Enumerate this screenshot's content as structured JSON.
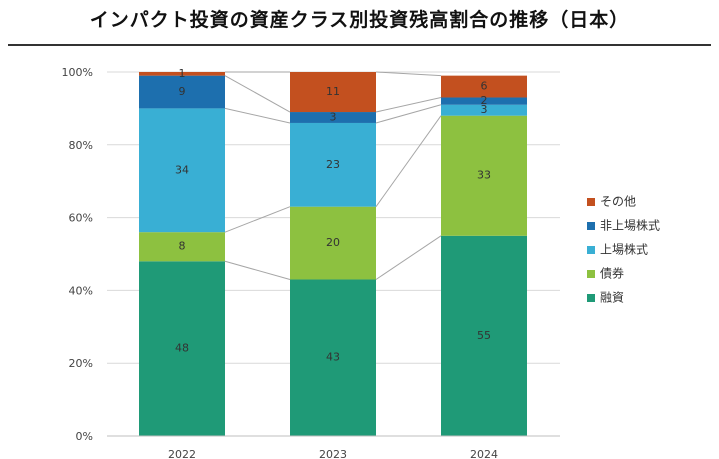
{
  "title": "インパクト投資の資産クラス別投資残高割合の推移（日本）",
  "chart_data": {
    "type": "bar",
    "stacked": true,
    "categories": [
      "2022",
      "2023",
      "2024"
    ],
    "series": [
      {
        "name": "融資",
        "color": "#1f9a77",
        "values": [
          48,
          43,
          55
        ]
      },
      {
        "name": "債券",
        "color": "#8dc140",
        "values": [
          8,
          20,
          33
        ]
      },
      {
        "name": "上場株式",
        "color": "#39afd4",
        "values": [
          34,
          23,
          3
        ]
      },
      {
        "name": "非上場株式",
        "color": "#1d6fae",
        "values": [
          9,
          3,
          2
        ]
      },
      {
        "name": "その他",
        "color": "#c3501f",
        "values": [
          1,
          11,
          6
        ]
      }
    ],
    "ylim": [
      0,
      100
    ],
    "yticks": [
      "0%",
      "20%",
      "40%",
      "60%",
      "80%",
      "100%"
    ],
    "legend_order": [
      "その他",
      "非上場株式",
      "上場株式",
      "債券",
      "融資"
    ],
    "legend_position": "right",
    "grid": true,
    "series_lines": true
  }
}
